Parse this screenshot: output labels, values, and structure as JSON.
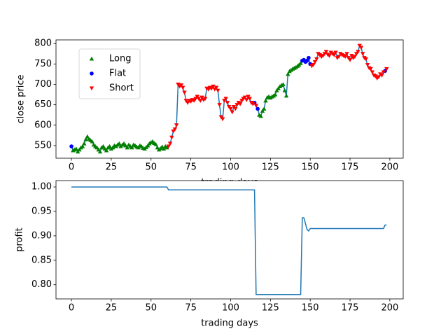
{
  "chart_data": [
    {
      "type": "line",
      "xlabel": "trading days",
      "ylabel": "close price",
      "legend": "upper left",
      "xlim": [
        -9.7,
        208.4
      ],
      "ylim": [
        519,
        809
      ],
      "xticks": [
        0,
        25,
        50,
        75,
        100,
        125,
        150,
        175,
        200
      ],
      "yticks": [
        550,
        600,
        650,
        700,
        750,
        800
      ],
      "series": [
        {
          "type": "line",
          "color": "#1f77b4",
          "x": [
            0,
            1,
            2,
            3,
            4,
            5,
            6,
            7,
            8,
            9,
            10,
            11,
            12,
            13,
            14,
            15,
            16,
            17,
            18,
            19,
            20,
            21,
            22,
            23,
            24,
            25,
            26,
            27,
            28,
            29,
            30,
            31,
            32,
            33,
            34,
            35,
            36,
            37,
            38,
            39,
            40,
            41,
            42,
            43,
            44,
            45,
            46,
            47,
            48,
            49,
            50,
            51,
            52,
            53,
            54,
            55,
            56,
            57,
            58,
            59,
            60,
            61,
            62,
            63,
            64,
            65,
            66,
            67,
            68,
            69,
            70,
            71,
            72,
            73,
            74,
            75,
            76,
            77,
            78,
            79,
            80,
            81,
            82,
            83,
            84,
            85,
            86,
            87,
            88,
            89,
            90,
            91,
            92,
            93,
            94,
            95,
            96,
            97,
            98,
            99,
            100,
            101,
            102,
            103,
            104,
            105,
            106,
            107,
            108,
            109,
            110,
            111,
            112,
            113,
            114,
            115,
            116,
            117,
            118,
            119,
            120,
            121,
            122,
            123,
            124,
            125,
            126,
            127,
            128,
            129,
            130,
            131,
            132,
            133,
            134,
            135,
            136,
            137,
            138,
            139,
            140,
            141,
            142,
            143,
            144,
            145,
            146,
            147,
            148,
            149,
            150,
            151,
            152,
            153,
            154,
            155,
            156,
            157,
            158,
            159,
            160,
            161,
            162,
            163,
            164,
            165,
            166,
            167,
            168,
            169,
            170,
            171,
            172,
            173,
            174,
            175,
            176,
            177,
            178,
            179,
            180,
            181,
            182,
            183,
            184,
            185,
            186,
            187,
            188,
            189,
            190,
            191,
            192,
            193,
            194,
            195,
            196,
            197,
            198
          ],
          "values": [
            548,
            538,
            540,
            542,
            535,
            540,
            545,
            548,
            555,
            565,
            572,
            566,
            563,
            560,
            552,
            548,
            545,
            540,
            535,
            545,
            548,
            542,
            538,
            545,
            548,
            542,
            545,
            550,
            548,
            552,
            555,
            548,
            552,
            555,
            550,
            545,
            552,
            548,
            545,
            552,
            550,
            547,
            545,
            550,
            548,
            544,
            542,
            546,
            550,
            555,
            558,
            560,
            556,
            553,
            545,
            540,
            543,
            547,
            542,
            548,
            545,
            548,
            555,
            570,
            585,
            590,
            600,
            700,
            695,
            698,
            692,
            680,
            660,
            655,
            660,
            658,
            662,
            660,
            665,
            670,
            665,
            660,
            668,
            662,
            665,
            690,
            688,
            692,
            690,
            695,
            688,
            692,
            685,
            650,
            620,
            615,
            660,
            665,
            655,
            645,
            640,
            632,
            645,
            640,
            650,
            655,
            652,
            660,
            665,
            668,
            662,
            670,
            665,
            655,
            652,
            655,
            648,
            640,
            625,
            622,
            635,
            640,
            660,
            668,
            670,
            667,
            670,
            672,
            675,
            685,
            690,
            695,
            698,
            700,
            685,
            672,
            725,
            732,
            735,
            738,
            740,
            742,
            745,
            748,
            752,
            758,
            760,
            755,
            758,
            765,
            750,
            745,
            748,
            755,
            762,
            775,
            772,
            768,
            770,
            775,
            780,
            773,
            770,
            778,
            775,
            772,
            778,
            765,
            768,
            775,
            772,
            770,
            768,
            775,
            765,
            760,
            770,
            765,
            768,
            775,
            780,
            795,
            790,
            775,
            765,
            762,
            748,
            740,
            738,
            730,
            722,
            720,
            715,
            718,
            725,
            722,
            730,
            733,
            738
          ]
        },
        {
          "type": "scatter",
          "name": "Long",
          "color": "#008000",
          "marker": "^",
          "x": [
            1,
            2,
            3,
            4,
            5,
            6,
            7,
            8,
            9,
            10,
            11,
            12,
            13,
            14,
            15,
            16,
            17,
            18,
            19,
            20,
            21,
            22,
            23,
            24,
            25,
            26,
            27,
            28,
            29,
            30,
            31,
            32,
            33,
            34,
            35,
            36,
            37,
            38,
            39,
            40,
            41,
            42,
            43,
            44,
            45,
            46,
            47,
            48,
            49,
            50,
            51,
            52,
            53,
            54,
            55,
            56,
            57,
            58,
            59,
            60,
            118,
            119,
            120,
            121,
            122,
            123,
            124,
            125,
            126,
            127,
            128,
            129,
            130,
            131,
            132,
            133,
            134,
            135,
            136,
            137,
            138,
            139,
            140,
            141,
            142,
            143,
            144
          ],
          "values": [
            538,
            540,
            542,
            535,
            540,
            545,
            548,
            555,
            565,
            572,
            566,
            563,
            560,
            552,
            548,
            545,
            540,
            535,
            545,
            548,
            542,
            538,
            545,
            548,
            542,
            545,
            550,
            548,
            552,
            555,
            548,
            552,
            555,
            550,
            545,
            552,
            548,
            545,
            552,
            550,
            547,
            545,
            550,
            548,
            544,
            542,
            546,
            550,
            555,
            558,
            560,
            556,
            553,
            545,
            540,
            543,
            547,
            542,
            548,
            545,
            625,
            622,
            635,
            640,
            660,
            668,
            670,
            667,
            670,
            672,
            675,
            685,
            690,
            695,
            698,
            700,
            685,
            672,
            725,
            732,
            735,
            738,
            740,
            742,
            745,
            748,
            752
          ]
        },
        {
          "type": "scatter",
          "name": "Flat",
          "color": "#0000ff",
          "marker": "o",
          "x": [
            0,
            115,
            117,
            145,
            146,
            147,
            148,
            149,
            150,
            197
          ],
          "values": [
            548,
            655,
            640,
            758,
            760,
            755,
            758,
            765,
            750,
            733
          ]
        },
        {
          "type": "scatter",
          "name": "Short",
          "color": "#ff0000",
          "marker": "v",
          "x": [
            61,
            62,
            63,
            64,
            65,
            66,
            67,
            68,
            69,
            70,
            71,
            72,
            73,
            74,
            75,
            76,
            77,
            78,
            79,
            80,
            81,
            82,
            83,
            84,
            85,
            86,
            87,
            88,
            89,
            90,
            91,
            92,
            93,
            94,
            95,
            96,
            97,
            98,
            99,
            100,
            101,
            102,
            103,
            104,
            105,
            106,
            107,
            108,
            109,
            110,
            111,
            112,
            113,
            114,
            116,
            151,
            152,
            153,
            154,
            155,
            156,
            157,
            158,
            159,
            160,
            161,
            162,
            163,
            164,
            165,
            166,
            167,
            168,
            169,
            170,
            171,
            172,
            173,
            174,
            175,
            176,
            177,
            178,
            179,
            180,
            181,
            182,
            183,
            184,
            185,
            186,
            187,
            188,
            189,
            190,
            191,
            192,
            193,
            194,
            195,
            196,
            198
          ],
          "values": [
            548,
            555,
            570,
            585,
            590,
            600,
            700,
            695,
            698,
            692,
            680,
            660,
            655,
            660,
            658,
            662,
            660,
            665,
            670,
            665,
            660,
            668,
            662,
            665,
            690,
            688,
            692,
            690,
            695,
            688,
            692,
            685,
            650,
            620,
            615,
            660,
            665,
            655,
            645,
            640,
            632,
            645,
            640,
            650,
            655,
            652,
            660,
            665,
            668,
            662,
            670,
            665,
            655,
            652,
            648,
            745,
            748,
            755,
            762,
            775,
            772,
            768,
            770,
            775,
            780,
            773,
            770,
            778,
            775,
            772,
            778,
            765,
            768,
            775,
            772,
            770,
            768,
            775,
            765,
            760,
            770,
            765,
            768,
            775,
            780,
            795,
            790,
            775,
            765,
            762,
            748,
            740,
            738,
            730,
            722,
            720,
            715,
            718,
            725,
            722,
            730,
            738
          ]
        }
      ]
    },
    {
      "type": "line",
      "xlabel": "trading days",
      "ylabel": "profit",
      "xlim": [
        -9.7,
        208.4
      ],
      "ylim": [
        0.771,
        1.013
      ],
      "xticks": [
        0,
        25,
        50,
        75,
        100,
        125,
        150,
        175,
        200
      ],
      "yticks": [
        {
          "value": 0.8,
          "label": "0.80"
        },
        0.85,
        {
          "value": 0.9,
          "label": "0.90"
        },
        0.95,
        {
          "value": 1,
          "label": "1.00"
        }
      ],
      "series": [
        {
          "type": "line",
          "color": "#1f77b4",
          "x": [
            0,
            60,
            61,
            115,
            116,
            144,
            145,
            146,
            147,
            148,
            149,
            150,
            151,
            196,
            197,
            198
          ],
          "values": [
            1.0,
            1.0,
            0.994,
            0.994,
            0.78,
            0.78,
            0.937,
            0.937,
            0.925,
            0.913,
            0.91,
            0.915,
            0.915,
            0.915,
            0.922,
            0.922
          ]
        }
      ]
    }
  ]
}
